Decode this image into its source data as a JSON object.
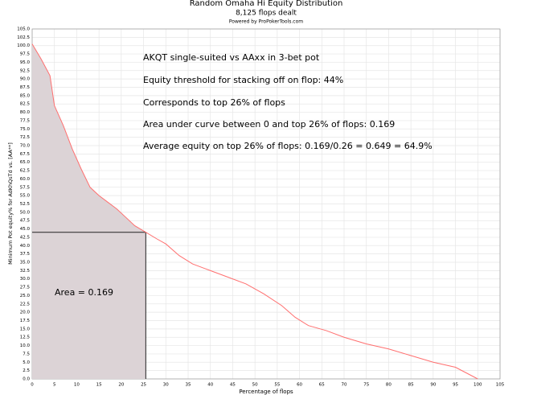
{
  "chart_data": {
    "type": "line",
    "title": "Random Omaha Hi Equity Distribution",
    "subtitle": "8,125 flops dealt",
    "credit": "Powered by ProPokerTools.com",
    "x_label": "Percentage of flops",
    "y_label": "Minimum Pot equity% for AdKhQsTd vs. [AA**]",
    "annotations": [
      "AKQT single-suited vs AAxx in 3-bet pot",
      "Equity threshold for stacking off on flop: 44%",
      "Corresponds to top 26% of flops",
      "Area under curve between 0 and top 26% of flops: 0.169",
      "Average equity on top 26% of flops: 0.169/0.26 = 0.649 = 64.9%"
    ],
    "area_label": "Area = 0.169",
    "x": [
      0,
      2,
      4,
      5,
      7,
      9,
      11,
      13,
      15,
      17,
      19,
      21,
      23,
      25.5,
      28,
      30,
      33,
      36,
      40,
      44,
      48,
      52,
      56,
      59,
      62,
      66,
      70,
      75,
      80,
      85,
      90,
      95,
      100
    ],
    "values": [
      100.5,
      96,
      91,
      82,
      76,
      69,
      63,
      57.5,
      55,
      53,
      51,
      48.5,
      46,
      44,
      42,
      40.5,
      37,
      34.5,
      32.5,
      30.5,
      28.5,
      25.5,
      22,
      18.5,
      16,
      14.5,
      12.5,
      10.5,
      9,
      7,
      5,
      3.5,
      0
    ],
    "color": "#ff6f6f",
    "area_color": "#dcd3d6",
    "shaded_region": {
      "x_end": 25.5,
      "y_top": 44
    },
    "xlim": [
      0,
      105
    ],
    "ylim": [
      0,
      105
    ],
    "xticks": [
      0,
      5,
      10,
      15,
      20,
      25,
      30,
      35,
      40,
      45,
      50,
      55,
      60,
      65,
      70,
      75,
      80,
      85,
      90,
      95,
      100,
      105
    ],
    "yticks": [
      {
        "value": 0,
        "label": "0.0"
      },
      2.5,
      {
        "value": 5,
        "label": "5.0"
      },
      7.5,
      {
        "value": 10,
        "label": "10.0"
      },
      12.5,
      {
        "value": 15,
        "label": "15.0"
      },
      17.5,
      {
        "value": 20,
        "label": "20.0"
      },
      22.5,
      {
        "value": 25,
        "label": "25.0"
      },
      27.5,
      {
        "value": 30,
        "label": "30.0"
      },
      32.5,
      {
        "value": 35,
        "label": "35.0"
      },
      37.5,
      {
        "value": 40,
        "label": "40.0"
      },
      42.5,
      {
        "value": 45,
        "label": "45.0"
      },
      47.5,
      {
        "value": 50,
        "label": "50.0"
      },
      52.5,
      {
        "value": 55,
        "label": "55.0"
      },
      57.5,
      {
        "value": 60,
        "label": "60.0"
      },
      62.5,
      {
        "value": 65,
        "label": "65.0"
      },
      67.5,
      {
        "value": 70,
        "label": "70.0"
      },
      72.5,
      {
        "value": 75,
        "label": "75.0"
      },
      77.5,
      {
        "value": 80,
        "label": "80.0"
      },
      82.5,
      {
        "value": 85,
        "label": "85.0"
      },
      87.5,
      {
        "value": 90,
        "label": "90.0"
      },
      92.5,
      {
        "value": 95,
        "label": "95.0"
      },
      97.5,
      {
        "value": 100,
        "label": "100.0"
      },
      102.5,
      {
        "value": 105,
        "label": "105.0"
      }
    ],
    "grid": true
  }
}
